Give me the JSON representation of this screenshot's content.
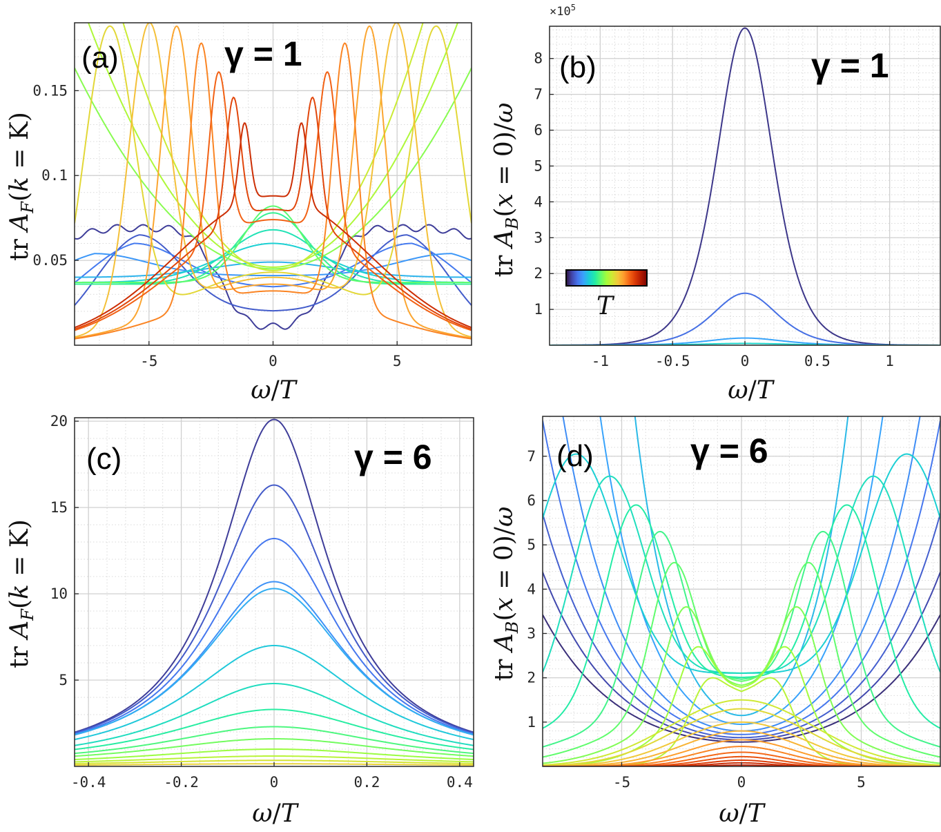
{
  "figure": {
    "ylabel_F": "tr A_F(k = K)",
    "ylabel_B": "tr A_B(x = 0)/ω",
    "xlabel": "ω/T",
    "colorbar_label": "T",
    "colorscale": [
      "#30123b",
      "#4145ab",
      "#4675ed",
      "#39a2fc",
      "#1bcfd4",
      "#24eca6",
      "#61fc6c",
      "#a4fc3b",
      "#d1e834",
      "#f3c63a",
      "#fe9b2d",
      "#f36315",
      "#d93806",
      "#b11901",
      "#7a0402"
    ]
  },
  "chart_data": [
    {
      "panel": "(a)",
      "type": "line",
      "annotation": "γ = 1",
      "xlim": [
        -8,
        8
      ],
      "ylim": [
        0,
        0.19
      ],
      "xticks": [
        -5,
        0,
        5
      ],
      "yticks": [
        0.05,
        0.1,
        0.15
      ],
      "yticklabels": [
        "0.05",
        "0.1",
        "0.15"
      ],
      "xlabel": "ω/T",
      "ylabel": "tr A_F(k = K)",
      "grid": true,
      "colorscale": "turbo",
      "series": [
        {
          "shape": "wavy",
          "p0": 0.011,
          "peak": 0.069,
          "pos": 7.6,
          "width": 2.5
        },
        {
          "shape": "dip",
          "p0": 0.02,
          "peak": 0.065,
          "pos": 5.4,
          "width": 2.4
        },
        {
          "shape": "dip",
          "p0": 0.034,
          "peak": 0.06,
          "pos": 5.6,
          "width": 2.8
        },
        {
          "shape": "dip",
          "p0": 0.041,
          "peak": 0.054,
          "pos": 7.2,
          "width": 3.0
        },
        {
          "shape": "flat",
          "p0": 0.049,
          "edge": 0.04,
          "width": 2.5
        },
        {
          "shape": "flat",
          "p0": 0.06,
          "edge": 0.037,
          "width": 2.2
        },
        {
          "shape": "flat",
          "p0": 0.068,
          "edge": 0.036,
          "width": 1.8
        },
        {
          "shape": "flat",
          "p0": 0.078,
          "edge": 0.036,
          "width": 1.4
        },
        {
          "shape": "flat",
          "p0": 0.082,
          "edge": 0.037,
          "width": 1.2
        },
        {
          "shape": "parab",
          "p0": 0.045,
          "k": 0.00185
        },
        {
          "shape": "parab",
          "p0": 0.046,
          "k": 0.0026
        },
        {
          "shape": "parab",
          "p0": 0.044,
          "k": 0.004
        },
        {
          "shape": "peak",
          "p0": 0.043,
          "peak": 0.188,
          "pos": 6.6,
          "width": 1.0
        },
        {
          "shape": "peak",
          "p0": 0.04,
          "peak": 0.19,
          "pos": 5.0,
          "width": 0.8
        },
        {
          "shape": "peak",
          "p0": 0.036,
          "peak": 0.188,
          "pos": 3.9,
          "width": 0.62
        },
        {
          "shape": "peak",
          "p0": 0.032,
          "peak": 0.178,
          "pos": 2.9,
          "width": 0.48
        },
        {
          "shape": "peak",
          "p0": 0.074,
          "peak": 0.161,
          "pos": 2.2,
          "width": 0.38
        },
        {
          "shape": "peak",
          "p0": 0.08,
          "peak": 0.146,
          "pos": 1.6,
          "width": 0.3
        },
        {
          "shape": "peak",
          "p0": 0.088,
          "peak": 0.131,
          "pos": 1.15,
          "width": 0.22
        }
      ]
    },
    {
      "panel": "(b)",
      "type": "line",
      "annotation": "γ = 1",
      "xlim": [
        -1.35,
        1.35
      ],
      "ylim": [
        0,
        8.9
      ],
      "xticks": [
        -1,
        -0.5,
        0,
        0.5,
        1
      ],
      "xticklabels": [
        "-1",
        "-0.5",
        "0",
        "0.5",
        "1"
      ],
      "yticks": [
        1,
        2,
        3,
        4,
        5,
        6,
        7,
        8
      ],
      "yticklabels": [
        "1",
        "2",
        "3",
        "4",
        "5",
        "6",
        "7",
        "8"
      ],
      "y_multiplier": "×10",
      "y_multiplier_exp": "5",
      "xlabel": "ω/T",
      "ylabel": "tr A_B(x = 0)/ω",
      "grid": true,
      "colorscale": "turbo",
      "series": [
        {
          "shape": "sech2",
          "peak": 8.85,
          "width": 0.26
        },
        {
          "shape": "sech2",
          "peak": 1.45,
          "width": 0.3
        },
        {
          "shape": "sech2",
          "peak": 0.2,
          "width": 0.35
        },
        {
          "shape": "sech2",
          "peak": 0.05,
          "width": 0.4
        }
      ]
    },
    {
      "panel": "(c)",
      "type": "line",
      "annotation": "γ = 6",
      "xlim": [
        -0.43,
        0.43
      ],
      "ylim": [
        0,
        20.2
      ],
      "xticks": [
        -0.4,
        -0.2,
        0,
        0.2,
        0.4
      ],
      "xticklabels": [
        "-0.4",
        "-0.2",
        "0",
        "0.2",
        "0.4"
      ],
      "yticks": [
        5,
        10,
        15,
        20
      ],
      "yticklabels": [
        "5",
        "10",
        "15",
        "20"
      ],
      "xlabel": "ω/T",
      "ylabel": "tr A_F(k = K)",
      "grid": true,
      "colorscale": "turbo",
      "series": [
        {
          "shape": "lorentz",
          "peak": 20.1,
          "width": 0.142
        },
        {
          "shape": "lorentz",
          "peak": 16.3,
          "width": 0.158
        },
        {
          "shape": "lorentz",
          "peak": 13.2,
          "width": 0.175
        },
        {
          "shape": "lorentz",
          "peak": 10.7,
          "width": 0.195
        },
        {
          "shape": "lorentz",
          "peak": 10.3,
          "width": 0.2
        },
        {
          "shape": "lorentz",
          "peak": 7.0,
          "width": 0.23
        },
        {
          "shape": "lorentz",
          "peak": 4.8,
          "width": 0.25
        },
        {
          "shape": "lorentz",
          "peak": 3.3,
          "width": 0.28
        },
        {
          "shape": "lorentz",
          "peak": 2.3,
          "width": 0.3
        },
        {
          "shape": "lorentz",
          "peak": 1.6,
          "width": 0.33
        },
        {
          "shape": "lorentz",
          "peak": 1.0,
          "width": 0.35
        },
        {
          "shape": "lorentz",
          "peak": 0.6,
          "width": 0.38
        },
        {
          "shape": "lorentz",
          "peak": 0.35,
          "width": 0.4
        },
        {
          "shape": "lorentz",
          "peak": 0.15,
          "width": 0.45
        }
      ]
    },
    {
      "panel": "(d)",
      "type": "line",
      "annotation": "γ = 6",
      "xlim": [
        -8.3,
        8.3
      ],
      "ylim": [
        0,
        7.9
      ],
      "xticks": [
        -5,
        0,
        5
      ],
      "yticks": [
        1,
        2,
        3,
        4,
        5,
        6,
        7
      ],
      "xlabel": "ω/T",
      "ylabel": "tr A_B(x = 0)/ω",
      "grid": true,
      "colorscale": "turbo",
      "series": [
        {
          "shape": "cosh",
          "p0": 0.55,
          "a": 3.3
        },
        {
          "shape": "cosh",
          "p0": 0.6,
          "a": 3.1
        },
        {
          "shape": "cosh",
          "p0": 0.65,
          "a": 2.9
        },
        {
          "shape": "cosh",
          "p0": 0.72,
          "a": 2.7
        },
        {
          "shape": "cosh",
          "p0": 0.8,
          "a": 2.5
        },
        {
          "shape": "cosh",
          "p0": 0.95,
          "a": 2.1
        },
        {
          "shape": "cosh",
          "p0": 1.15,
          "a": 1.7
        },
        {
          "shape": "peak2",
          "p0": 2.1,
          "peak": 7.05,
          "pos": 6.9,
          "width": 1.8
        },
        {
          "shape": "peak2",
          "p0": 2.1,
          "peak": 6.55,
          "pos": 5.5,
          "width": 1.5
        },
        {
          "shape": "peak2",
          "p0": 2.0,
          "peak": 5.9,
          "pos": 4.4,
          "width": 1.25
        },
        {
          "shape": "peak2",
          "p0": 1.95,
          "peak": 5.3,
          "pos": 3.4,
          "width": 1.05
        },
        {
          "shape": "peak2",
          "p0": 1.9,
          "peak": 4.6,
          "pos": 2.8,
          "width": 0.9
        },
        {
          "shape": "peak2",
          "p0": 1.8,
          "peak": 3.6,
          "pos": 2.3,
          "width": 0.8
        },
        {
          "shape": "peak2",
          "p0": 1.75,
          "peak": 2.7,
          "pos": 1.8,
          "width": 0.7
        },
        {
          "shape": "peak2",
          "p0": 1.6,
          "peak": 2.0,
          "pos": 1.2,
          "width": 0.7
        },
        {
          "shape": "bump",
          "p0": 1.5,
          "w": 3.0
        },
        {
          "shape": "bump",
          "p0": 1.3,
          "w": 2.8
        },
        {
          "shape": "bump",
          "p0": 1.0,
          "w": 2.6
        },
        {
          "shape": "bump",
          "p0": 0.8,
          "w": 2.4
        },
        {
          "shape": "bump",
          "p0": 0.6,
          "w": 2.2
        },
        {
          "shape": "bump",
          "p0": 0.45,
          "w": 2.0
        },
        {
          "shape": "bump",
          "p0": 0.32,
          "w": 1.8
        },
        {
          "shape": "bump",
          "p0": 0.22,
          "w": 1.6
        },
        {
          "shape": "bump",
          "p0": 0.14,
          "w": 1.4
        },
        {
          "shape": "bump",
          "p0": 0.08,
          "w": 1.2
        },
        {
          "shape": "bump",
          "p0": 0.03,
          "w": 1.0
        }
      ]
    }
  ]
}
